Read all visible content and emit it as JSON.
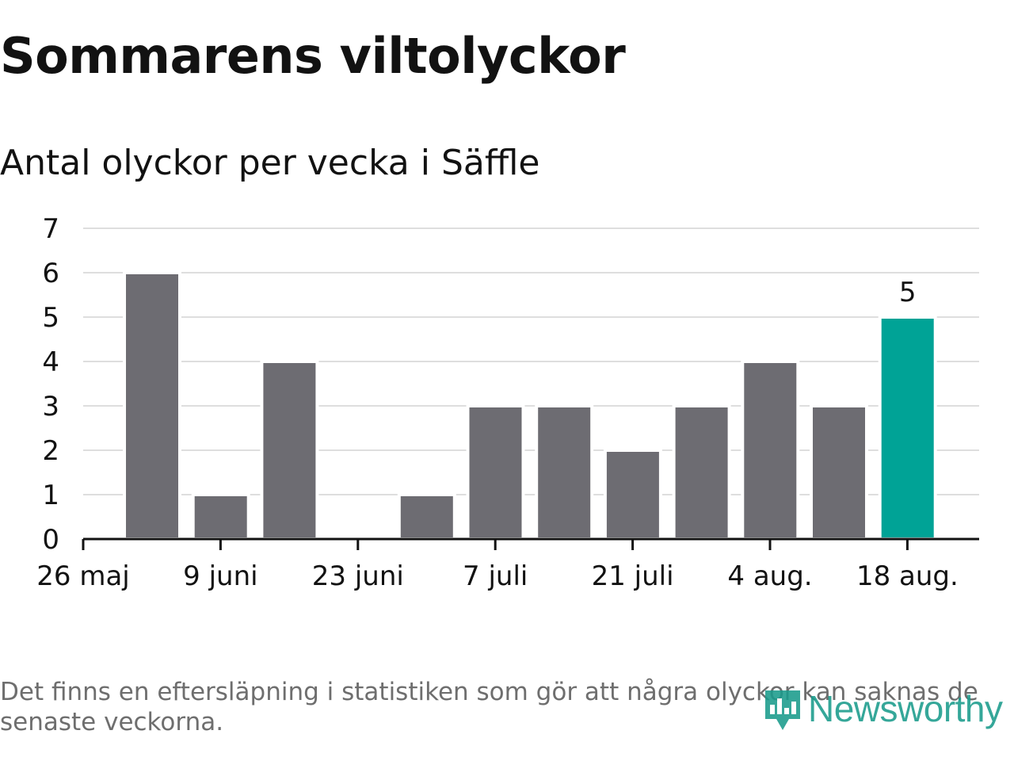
{
  "header": {
    "title": "Sommarens viltolyckor",
    "subtitle": "Antal olyckor per vecka i Säffle"
  },
  "chart_data": {
    "type": "bar",
    "title": "Sommarens viltolyckor",
    "subtitle": "Antal olyckor per vecka i Säffle",
    "xlabel": "",
    "ylabel": "",
    "x_tick_labels": [
      "26 maj",
      "9 juni",
      "23 juni",
      "7 juli",
      "21 juli",
      "4 aug.",
      "18 aug."
    ],
    "y_ticks": [
      0,
      1,
      2,
      3,
      4,
      5,
      6,
      7
    ],
    "ylim": [
      0,
      7
    ],
    "values": [
      6,
      1,
      4,
      0,
      1,
      3,
      3,
      2,
      3,
      4,
      3,
      5
    ],
    "highlight_index": 11,
    "highlight_label": "5",
    "grid": true,
    "colors": {
      "bar": "#6d6c72",
      "highlight": "#00a396",
      "grid": "#dedede",
      "axis": "#121212"
    }
  },
  "footer": {
    "note": "Det finns en eftersläpning i statistiken som gör att några olyckor kan saknas de senaste veckorna.",
    "brand": "Newsworthy",
    "brand_icon": "newsworthy-logo-icon"
  }
}
